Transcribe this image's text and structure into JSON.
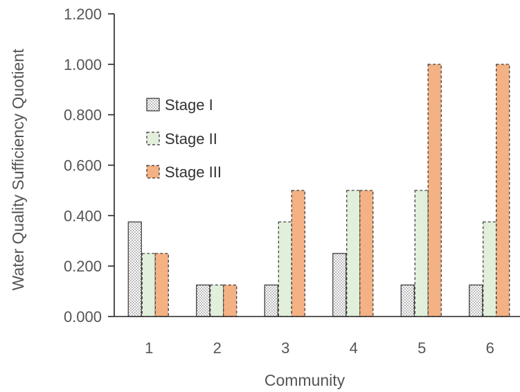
{
  "chart_data": {
    "type": "bar",
    "xlabel": "Community",
    "ylabel": "Water Quality Sufficiency Quotient",
    "categories": [
      "1",
      "2",
      "3",
      "4",
      "5",
      "6"
    ],
    "ylim": [
      0,
      1.2
    ],
    "yticks": [
      "0.000",
      "0.200",
      "0.400",
      "0.600",
      "0.800",
      "1.000",
      "1.200"
    ],
    "legend_position": "upper-left",
    "grid": false,
    "series": [
      {
        "name": "Stage I",
        "values": [
          0.375,
          0.125,
          0.125,
          0.25,
          0.125,
          0.125
        ],
        "color": "#ffffff",
        "pattern": "dotted",
        "border": "solid"
      },
      {
        "name": "Stage II",
        "values": [
          0.25,
          0.125,
          0.375,
          0.5,
          0.5,
          0.375
        ],
        "color": "#e2efda",
        "pattern": "none",
        "border": "dashed"
      },
      {
        "name": "Stage III",
        "values": [
          0.25,
          0.125,
          0.5,
          0.5,
          1.0,
          1.0
        ],
        "color": "#f4b183",
        "pattern": "none",
        "border": "dashed"
      }
    ]
  }
}
